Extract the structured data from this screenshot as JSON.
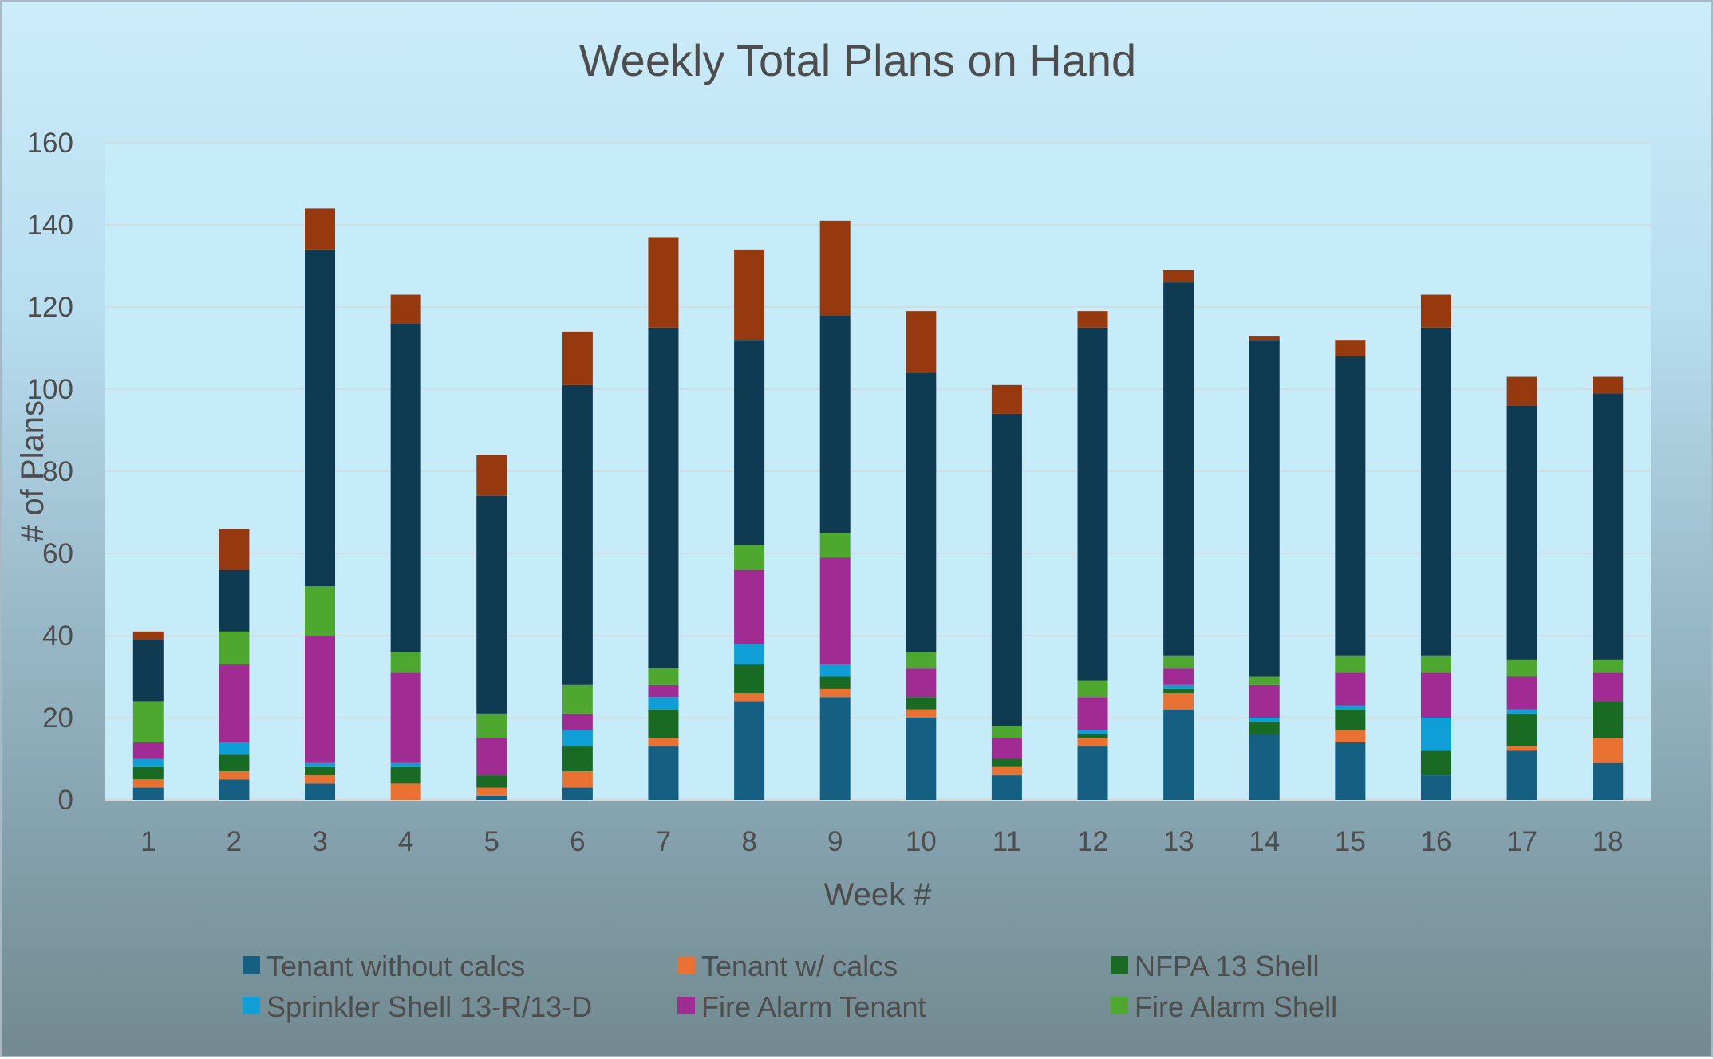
{
  "chart_data": {
    "type": "bar",
    "stacked": true,
    "title": "Weekly Total Plans on Hand",
    "xlabel": "Week #",
    "ylabel": "# of Plans",
    "ylim": [
      0,
      160
    ],
    "yticks": [
      0,
      20,
      40,
      60,
      80,
      100,
      120,
      140,
      160
    ],
    "grid": true,
    "legend_position": "bottom",
    "categories": [
      "1",
      "2",
      "3",
      "4",
      "5",
      "6",
      "7",
      "8",
      "9",
      "10",
      "11",
      "12",
      "13",
      "14",
      "15",
      "16",
      "17",
      "18"
    ],
    "series": [
      {
        "name": "Tenant without calcs",
        "color": "#156082",
        "values": [
          3,
          5,
          4,
          0,
          1,
          3,
          13,
          24,
          25,
          20,
          6,
          13,
          22,
          16,
          14,
          6,
          12,
          9
        ]
      },
      {
        "name": "Tenant w/ calcs",
        "color": "#e97132",
        "values": [
          2,
          2,
          2,
          4,
          2,
          4,
          2,
          2,
          2,
          2,
          2,
          2,
          4,
          0,
          3,
          0,
          1,
          6
        ]
      },
      {
        "name": "NFPA 13 Shell",
        "color": "#196b24",
        "values": [
          3,
          4,
          2,
          4,
          3,
          6,
          7,
          7,
          3,
          3,
          2,
          1,
          1,
          3,
          5,
          6,
          8,
          9
        ]
      },
      {
        "name": "Sprinkler Shell 13-R/13-D",
        "color": "#0f9ed5",
        "values": [
          2,
          3,
          1,
          1,
          0,
          4,
          3,
          5,
          3,
          0,
          0,
          1,
          1,
          1,
          1,
          8,
          1,
          0
        ]
      },
      {
        "name": "Fire Alarm Tenant",
        "color": "#a02b93",
        "values": [
          4,
          19,
          31,
          22,
          9,
          4,
          3,
          18,
          26,
          7,
          5,
          8,
          4,
          8,
          8,
          11,
          8,
          7
        ]
      },
      {
        "name": "Fire Alarm Shell",
        "color": "#4ea72e",
        "values": [
          10,
          8,
          12,
          5,
          6,
          7,
          4,
          6,
          6,
          4,
          3,
          4,
          3,
          2,
          4,
          4,
          4,
          3
        ]
      },
      {
        "color": "#0e3a52",
        "values": [
          15,
          15,
          82,
          80,
          53,
          73,
          83,
          50,
          53,
          68,
          76,
          86,
          91,
          82,
          73,
          80,
          62,
          65
        ]
      },
      {
        "color": "#96390f",
        "values": [
          2,
          10,
          10,
          7,
          10,
          13,
          22,
          22,
          23,
          15,
          7,
          4,
          3,
          1,
          4,
          8,
          7,
          4
        ]
      }
    ],
    "legend": [
      "Tenant without calcs",
      "Tenant w/ calcs",
      "NFPA 13 Shell",
      "Sprinkler Shell 13-R/13-D",
      "Fire Alarm Tenant",
      "Fire Alarm Shell"
    ]
  }
}
